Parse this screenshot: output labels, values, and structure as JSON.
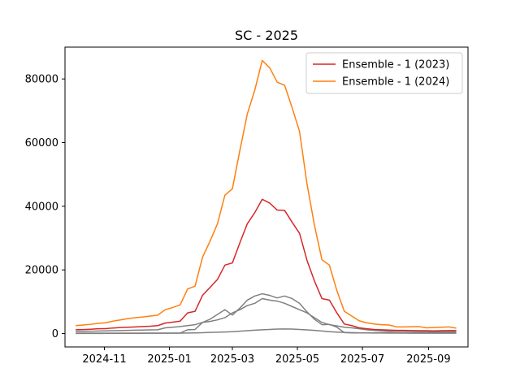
{
  "chart_data": {
    "type": "line",
    "title": "SC - 2025",
    "xlabel": "",
    "ylabel": "",
    "xlim": [
      "2024-09-25",
      "2025-10-08"
    ],
    "ylim": [
      -4200,
      90000
    ],
    "x_ticks": [
      "2024-11-01",
      "2025-01-01",
      "2025-03-01",
      "2025-05-01",
      "2025-07-01",
      "2025-09-01"
    ],
    "x_tick_labels": [
      "2024-11",
      "2025-01",
      "2025-03",
      "2025-05",
      "2025-07",
      "2025-09"
    ],
    "y_ticks": [
      0,
      20000,
      40000,
      60000,
      80000
    ],
    "y_tick_labels": [
      "0",
      "20000",
      "40000",
      "60000",
      "80000"
    ],
    "legend_position": "top-right",
    "grid": false,
    "series": [
      {
        "name": "Ensemble - 1 (2023)",
        "color": "#d62728",
        "in_legend": true,
        "x": [
          "2024-10-05",
          "2024-10-12",
          "2024-10-19",
          "2024-10-26",
          "2024-11-02",
          "2024-11-09",
          "2024-11-16",
          "2024-11-23",
          "2024-11-30",
          "2024-12-07",
          "2024-12-14",
          "2024-12-21",
          "2024-12-28",
          "2025-01-04",
          "2025-01-11",
          "2025-01-18",
          "2025-01-25",
          "2025-02-01",
          "2025-02-08",
          "2025-02-15",
          "2025-02-22",
          "2025-03-01",
          "2025-03-08",
          "2025-03-15",
          "2025-03-22",
          "2025-03-29",
          "2025-04-05",
          "2025-04-12",
          "2025-04-19",
          "2025-04-26",
          "2025-05-03",
          "2025-05-10",
          "2025-05-17",
          "2025-05-24",
          "2025-05-31",
          "2025-06-07",
          "2025-06-14",
          "2025-06-21",
          "2025-06-28",
          "2025-07-05",
          "2025-07-12",
          "2025-07-19",
          "2025-07-26",
          "2025-08-02",
          "2025-08-09",
          "2025-08-16",
          "2025-08-23",
          "2025-08-30",
          "2025-09-06",
          "2025-09-13",
          "2025-09-20",
          "2025-09-27"
        ],
        "values": [
          1200,
          1250,
          1350,
          1500,
          1550,
          1750,
          1900,
          2000,
          2100,
          2200,
          2300,
          2500,
          3300,
          3600,
          3900,
          6500,
          7000,
          12000,
          14500,
          17000,
          21500,
          22200,
          28500,
          34500,
          38000,
          42200,
          41000,
          38800,
          38700,
          35000,
          31500,
          23000,
          16500,
          11000,
          10500,
          6500,
          3000,
          2500,
          1800,
          1500,
          1300,
          1200,
          1100,
          1000,
          1000,
          950,
          900,
          900,
          850,
          900,
          950,
          950
        ]
      },
      {
        "name": "Ensemble - 1 (2024)",
        "color": "#ff7f0e",
        "in_legend": true,
        "x": [
          "2024-10-05",
          "2024-10-12",
          "2024-10-19",
          "2024-10-26",
          "2024-11-02",
          "2024-11-09",
          "2024-11-16",
          "2024-11-23",
          "2024-11-30",
          "2024-12-07",
          "2024-12-14",
          "2024-12-21",
          "2024-12-28",
          "2025-01-04",
          "2025-01-11",
          "2025-01-18",
          "2025-01-25",
          "2025-02-01",
          "2025-02-08",
          "2025-02-15",
          "2025-02-22",
          "2025-03-01",
          "2025-03-08",
          "2025-03-15",
          "2025-03-22",
          "2025-03-29",
          "2025-04-05",
          "2025-04-12",
          "2025-04-19",
          "2025-04-26",
          "2025-05-03",
          "2025-05-10",
          "2025-05-17",
          "2025-05-24",
          "2025-05-31",
          "2025-06-07",
          "2025-06-14",
          "2025-06-21",
          "2025-06-28",
          "2025-07-05",
          "2025-07-12",
          "2025-07-19",
          "2025-07-26",
          "2025-08-02",
          "2025-08-09",
          "2025-08-16",
          "2025-08-23",
          "2025-08-30",
          "2025-09-06",
          "2025-09-13",
          "2025-09-20",
          "2025-09-27"
        ],
        "values": [
          2500,
          2700,
          2900,
          3200,
          3400,
          3900,
          4300,
          4700,
          5000,
          5200,
          5500,
          5800,
          7500,
          8200,
          9000,
          14000,
          14900,
          24000,
          29000,
          34500,
          43500,
          45500,
          57500,
          69000,
          76500,
          85800,
          83500,
          79000,
          78000,
          71000,
          63500,
          47000,
          34000,
          23200,
          21500,
          13500,
          7000,
          5500,
          4000,
          3400,
          3000,
          2800,
          2700,
          2100,
          2100,
          2150,
          2200,
          1800,
          1900,
          2000,
          2100,
          1700
        ]
      },
      {
        "name": "",
        "color": "#808080",
        "in_legend": false,
        "x": [
          "2024-10-05",
          "2024-10-12",
          "2024-10-19",
          "2024-10-26",
          "2024-11-02",
          "2024-11-09",
          "2024-11-16",
          "2024-11-23",
          "2024-11-30",
          "2024-12-07",
          "2024-12-14",
          "2024-12-21",
          "2024-12-28",
          "2025-01-04",
          "2025-01-11",
          "2025-01-18",
          "2025-01-25",
          "2025-02-01",
          "2025-02-08",
          "2025-02-15",
          "2025-02-22",
          "2025-03-01",
          "2025-03-08",
          "2025-03-15",
          "2025-03-22",
          "2025-03-29",
          "2025-04-05",
          "2025-04-12",
          "2025-04-19",
          "2025-04-26",
          "2025-05-03",
          "2025-05-10",
          "2025-05-17",
          "2025-05-24",
          "2025-05-31",
          "2025-06-07",
          "2025-06-14",
          "2025-06-21",
          "2025-06-28",
          "2025-07-05",
          "2025-07-12",
          "2025-07-19",
          "2025-07-26",
          "2025-08-02",
          "2025-08-09",
          "2025-08-16",
          "2025-08-23",
          "2025-08-30",
          "2025-09-06",
          "2025-09-13",
          "2025-09-20",
          "2025-09-27"
        ],
        "values": [
          700,
          720,
          750,
          800,
          850,
          900,
          950,
          1000,
          1050,
          1100,
          1150,
          1200,
          1800,
          2000,
          2200,
          2500,
          2800,
          3500,
          3800,
          4300,
          5000,
          6500,
          7500,
          8800,
          9500,
          11000,
          10500,
          10200,
          9500,
          8500,
          7500,
          6500,
          5000,
          3500,
          2800,
          2400,
          2000,
          1800,
          1500,
          1200,
          1000,
          900,
          800,
          800,
          750,
          700,
          700,
          700,
          650,
          650,
          700,
          650
        ]
      },
      {
        "name": "",
        "color": "#808080",
        "in_legend": false,
        "x": [
          "2024-10-05",
          "2024-10-12",
          "2024-10-19",
          "2024-10-26",
          "2024-11-02",
          "2024-11-09",
          "2024-11-16",
          "2024-11-23",
          "2024-11-30",
          "2024-12-07",
          "2024-12-14",
          "2024-12-21",
          "2024-12-28",
          "2025-01-04",
          "2025-01-11",
          "2025-01-18",
          "2025-01-25",
          "2025-02-01",
          "2025-02-08",
          "2025-02-15",
          "2025-02-22",
          "2025-03-01",
          "2025-03-08",
          "2025-03-15",
          "2025-03-22",
          "2025-03-29",
          "2025-04-05",
          "2025-04-12",
          "2025-04-19",
          "2025-04-26",
          "2025-05-03",
          "2025-05-10",
          "2025-05-17",
          "2025-05-24",
          "2025-05-31",
          "2025-06-07",
          "2025-06-14",
          "2025-06-21",
          "2025-06-28",
          "2025-07-05",
          "2025-07-12",
          "2025-07-19",
          "2025-07-26",
          "2025-08-02",
          "2025-08-09",
          "2025-08-16",
          "2025-08-23",
          "2025-08-30",
          "2025-09-06",
          "2025-09-13",
          "2025-09-20",
          "2025-09-27"
        ],
        "values": [
          150,
          150,
          150,
          150,
          150,
          150,
          150,
          150,
          150,
          150,
          150,
          150,
          150,
          150,
          150,
          1200,
          1300,
          3500,
          4500,
          6000,
          7500,
          5800,
          8000,
          10500,
          11800,
          12500,
          12000,
          11200,
          11800,
          11000,
          9500,
          6800,
          4500,
          2800,
          2900,
          2000,
          300,
          200,
          200,
          200,
          250,
          300,
          350,
          300,
          250,
          250,
          300,
          300,
          350,
          300,
          300,
          300
        ]
      },
      {
        "name": "",
        "color": "#808080",
        "in_legend": false,
        "x": [
          "2024-10-05",
          "2024-10-12",
          "2024-10-19",
          "2024-10-26",
          "2024-11-02",
          "2024-11-09",
          "2024-11-16",
          "2024-11-23",
          "2024-11-30",
          "2024-12-07",
          "2024-12-14",
          "2024-12-21",
          "2024-12-28",
          "2025-01-04",
          "2025-01-11",
          "2025-01-18",
          "2025-01-25",
          "2025-02-01",
          "2025-02-08",
          "2025-02-15",
          "2025-02-22",
          "2025-03-01",
          "2025-03-08",
          "2025-03-15",
          "2025-03-22",
          "2025-03-29",
          "2025-04-05",
          "2025-04-12",
          "2025-04-19",
          "2025-04-26",
          "2025-05-03",
          "2025-05-10",
          "2025-05-17",
          "2025-05-24",
          "2025-05-31",
          "2025-06-07",
          "2025-06-14",
          "2025-06-21",
          "2025-06-28",
          "2025-07-05",
          "2025-07-12",
          "2025-07-19",
          "2025-07-26",
          "2025-08-02",
          "2025-08-09",
          "2025-08-16",
          "2025-08-23",
          "2025-08-30",
          "2025-09-06",
          "2025-09-13",
          "2025-09-20",
          "2025-09-27"
        ],
        "values": [
          50,
          50,
          50,
          50,
          60,
          60,
          70,
          70,
          80,
          90,
          100,
          110,
          120,
          130,
          150,
          180,
          220,
          280,
          350,
          420,
          500,
          600,
          750,
          900,
          1050,
          1200,
          1300,
          1400,
          1450,
          1400,
          1300,
          1150,
          1000,
          800,
          600,
          450,
          350,
          300,
          250,
          200,
          180,
          160,
          150,
          140,
          130,
          120,
          110,
          110,
          100,
          100,
          100,
          100
        ]
      }
    ]
  }
}
